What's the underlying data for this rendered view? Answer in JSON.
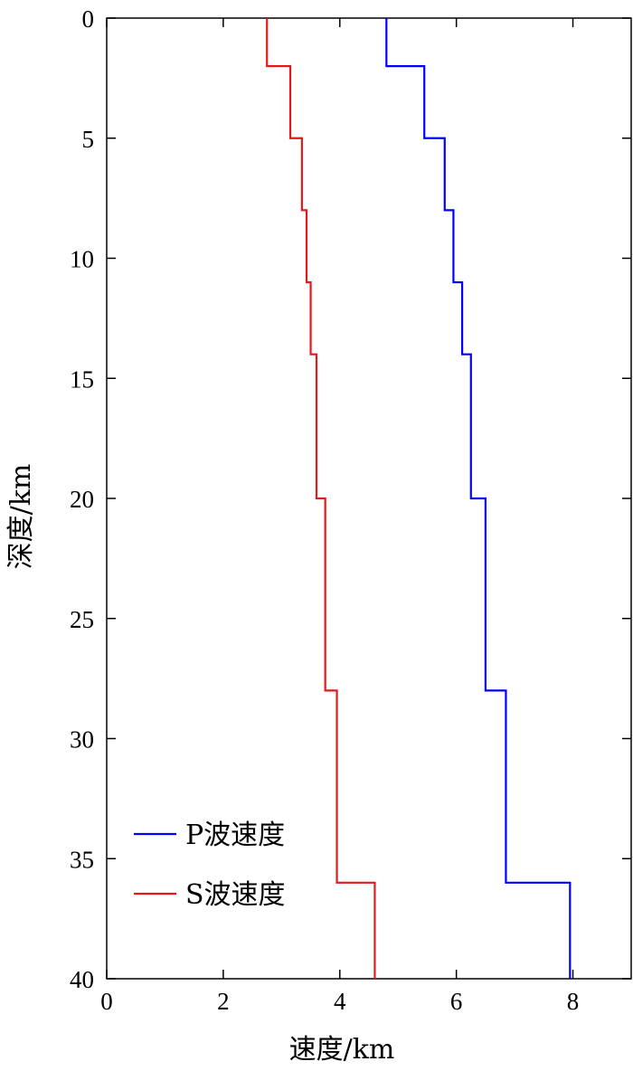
{
  "chart_data": {
    "type": "line",
    "xlabel": "速度/km",
    "ylabel": "深度/km",
    "xlim": [
      0,
      9
    ],
    "ylim": [
      0,
      40
    ],
    "y_inverted": true,
    "xticks": [
      "0",
      "2",
      "4",
      "6",
      "8"
    ],
    "yticks": [
      "0",
      "5",
      "10",
      "15",
      "20",
      "25",
      "30",
      "35",
      "40"
    ],
    "legend_position": "bottom-left",
    "step": "layered velocity model (step profile)",
    "series": [
      {
        "name": "P波速度",
        "color": "#0000ff",
        "layers": [
          {
            "depth_top": 0,
            "depth_bottom": 2,
            "velocity": 4.8
          },
          {
            "depth_top": 2,
            "depth_bottom": 5,
            "velocity": 5.45
          },
          {
            "depth_top": 5,
            "depth_bottom": 8,
            "velocity": 5.8
          },
          {
            "depth_top": 8,
            "depth_bottom": 11,
            "velocity": 5.95
          },
          {
            "depth_top": 11,
            "depth_bottom": 14,
            "velocity": 6.1
          },
          {
            "depth_top": 14,
            "depth_bottom": 20,
            "velocity": 6.25
          },
          {
            "depth_top": 20,
            "depth_bottom": 28,
            "velocity": 6.5
          },
          {
            "depth_top": 28,
            "depth_bottom": 36,
            "velocity": 6.85
          },
          {
            "depth_top": 36,
            "depth_bottom": 40,
            "velocity": 7.95
          }
        ]
      },
      {
        "name": "S波速度",
        "color": "#e31a1c",
        "layers": [
          {
            "depth_top": 0,
            "depth_bottom": 2,
            "velocity": 2.75
          },
          {
            "depth_top": 2,
            "depth_bottom": 5,
            "velocity": 3.15
          },
          {
            "depth_top": 5,
            "depth_bottom": 8,
            "velocity": 3.35
          },
          {
            "depth_top": 8,
            "depth_bottom": 11,
            "velocity": 3.43
          },
          {
            "depth_top": 11,
            "depth_bottom": 14,
            "velocity": 3.5
          },
          {
            "depth_top": 14,
            "depth_bottom": 20,
            "velocity": 3.6
          },
          {
            "depth_top": 20,
            "depth_bottom": 28,
            "velocity": 3.75
          },
          {
            "depth_top": 28,
            "depth_bottom": 36,
            "velocity": 3.95
          },
          {
            "depth_top": 36,
            "depth_bottom": 40,
            "velocity": 4.6
          }
        ]
      }
    ]
  }
}
